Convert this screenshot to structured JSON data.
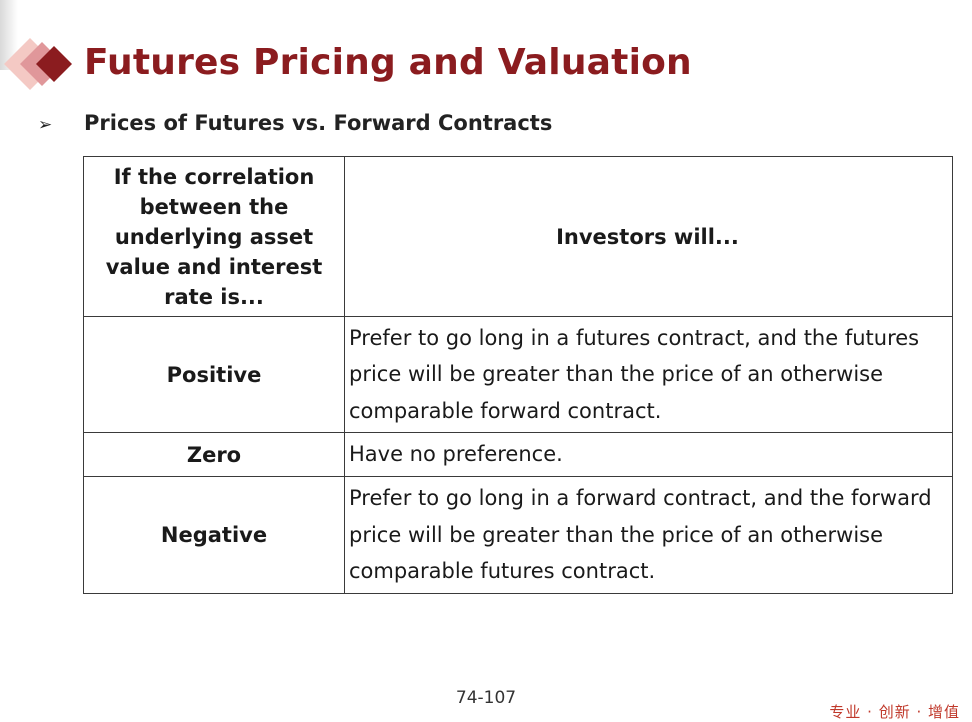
{
  "slide": {
    "title": "Futures Pricing and Valuation",
    "subheading": "Prices of Futures vs. Forward Contracts",
    "page_number": "74-107",
    "footer_slogan": "专业 · 创新 · 增值"
  },
  "table": {
    "header": {
      "condition": "If the correlation between the underlying asset value and interest rate is...",
      "outcome": "Investors will..."
    },
    "rows": [
      {
        "condition": "Positive",
        "outcome": "Prefer to go long in a futures contract, and the futures price will be greater than the price of an otherwise comparable forward contract."
      },
      {
        "condition": "Zero",
        "outcome": "Have no preference."
      },
      {
        "condition": "Negative",
        "outcome": "Prefer to go long in a forward contract, and the forward price will be greater than the price of an otherwise comparable futures contract."
      }
    ]
  },
  "colors": {
    "title": "#8b1c1f",
    "logo_diamonds": [
      "#f4c9c4",
      "#e0979a",
      "#8b1c1f"
    ],
    "slogan": "#c0392b"
  },
  "icons": {
    "bullet": "arrow-bullet-icon",
    "logo": "diamond-logo-icon"
  }
}
